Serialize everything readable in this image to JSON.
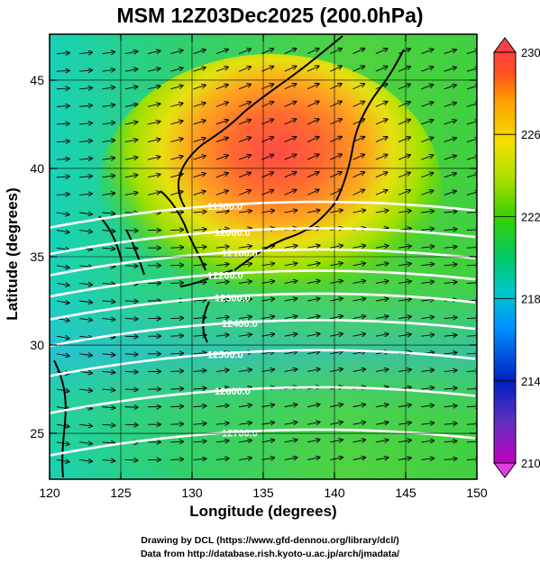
{
  "title": "MSM 12Z03Dec2025 (200.0hPa)",
  "map": {
    "xlabel": "Longitude (degrees)",
    "ylabel": "Latitude  (degrees)",
    "lon_range": [
      120,
      150
    ],
    "lat_range": [
      22.4,
      47.6
    ],
    "lon_ticks": [
      "120",
      "125",
      "130",
      "135",
      "140",
      "145",
      "150"
    ],
    "lat_ticks": [
      "25",
      "30",
      "35",
      "40",
      "45"
    ],
    "lon_tick_values": [
      120,
      125,
      130,
      135,
      140,
      145,
      150
    ],
    "lat_tick_values": [
      25,
      30,
      35,
      40,
      45
    ],
    "grid": true,
    "shading_variable_range": [
      210,
      230
    ],
    "contours": [
      {
        "label": "11900.0",
        "lat": 37.9
      },
      {
        "label": "12000.0",
        "lat": 36.4
      },
      {
        "label": "12100.0",
        "lat": 35.2
      },
      {
        "label": "12200.0",
        "lat": 34.0
      },
      {
        "label": "12300.0",
        "lat": 32.7
      },
      {
        "label": "12400.0",
        "lat": 31.2
      },
      {
        "label": "12500.0",
        "lat": 29.5
      },
      {
        "label": "12600.0",
        "lat": 27.4
      },
      {
        "label": "12700.0",
        "lat": 25.0
      }
    ],
    "vector_field": "wind vectors (westerly flow)"
  },
  "colorbar": {
    "labels": [
      "230",
      "226",
      "222",
      "218",
      "214",
      "210"
    ],
    "min": 210,
    "max": 230,
    "colors": [
      "#c000c0",
      "#5040c0",
      "#0020c0",
      "#0090ff",
      "#00c8c8",
      "#00c864",
      "#38d000",
      "#b4e000",
      "#f0e000",
      "#ffa000",
      "#ff5020",
      "#ff4040"
    ]
  },
  "credits": {
    "line1": "Drawing by DCL (https://www.gfd-dennou.org/library/dcl/)",
    "line2": "Data from http://database.rish.kyoto-u.ac.jp/arch/jmadata/"
  }
}
